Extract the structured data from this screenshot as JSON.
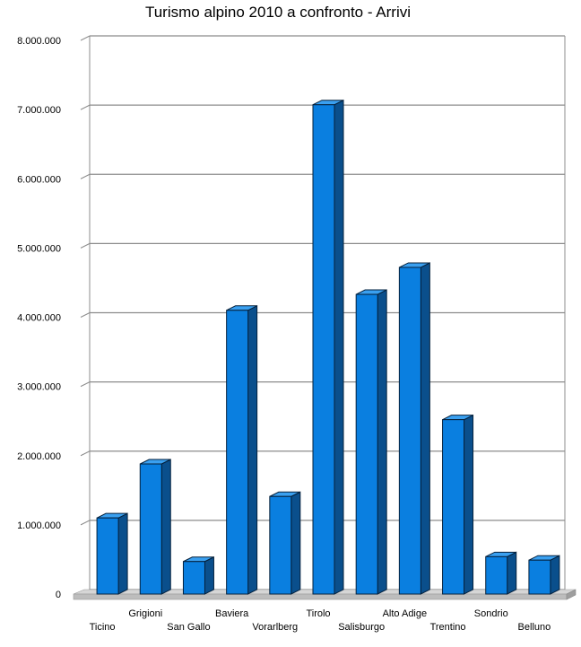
{
  "chart_data": {
    "type": "bar",
    "title": "Turismo alpino 2010 a confronto - Arrivi",
    "xlabel": "",
    "ylabel": "",
    "categories": [
      "Ticino",
      "Grigioni",
      "San Gallo",
      "Baviera",
      "Vorarlberg",
      "Tirolo",
      "Salisburgo",
      "Alto Adige",
      "Trentino",
      "Sondrio",
      "Belluno"
    ],
    "values": [
      1100000,
      1880000,
      470000,
      4100000,
      1410000,
      7070000,
      4330000,
      4720000,
      2520000,
      540000,
      490000
    ],
    "ylim": [
      0,
      8000000
    ],
    "y_ticks": [
      0,
      1000000,
      2000000,
      3000000,
      4000000,
      5000000,
      6000000,
      7000000,
      8000000
    ],
    "y_tick_labels": [
      "0",
      "1.000.000",
      "2.000.000",
      "3.000.000",
      "4.000.000",
      "5.000.000",
      "6.000.000",
      "7.000.000",
      "8.000.000"
    ],
    "grid": true,
    "legend": "none",
    "colors": {
      "bar_front": "#0a7fe0",
      "bar_side": "#0a4f8c",
      "bar_top": "#3aa0f0",
      "bar_stroke": "#05213d",
      "grid": "#8c8c8c",
      "floor": "#bdbdbd"
    }
  }
}
